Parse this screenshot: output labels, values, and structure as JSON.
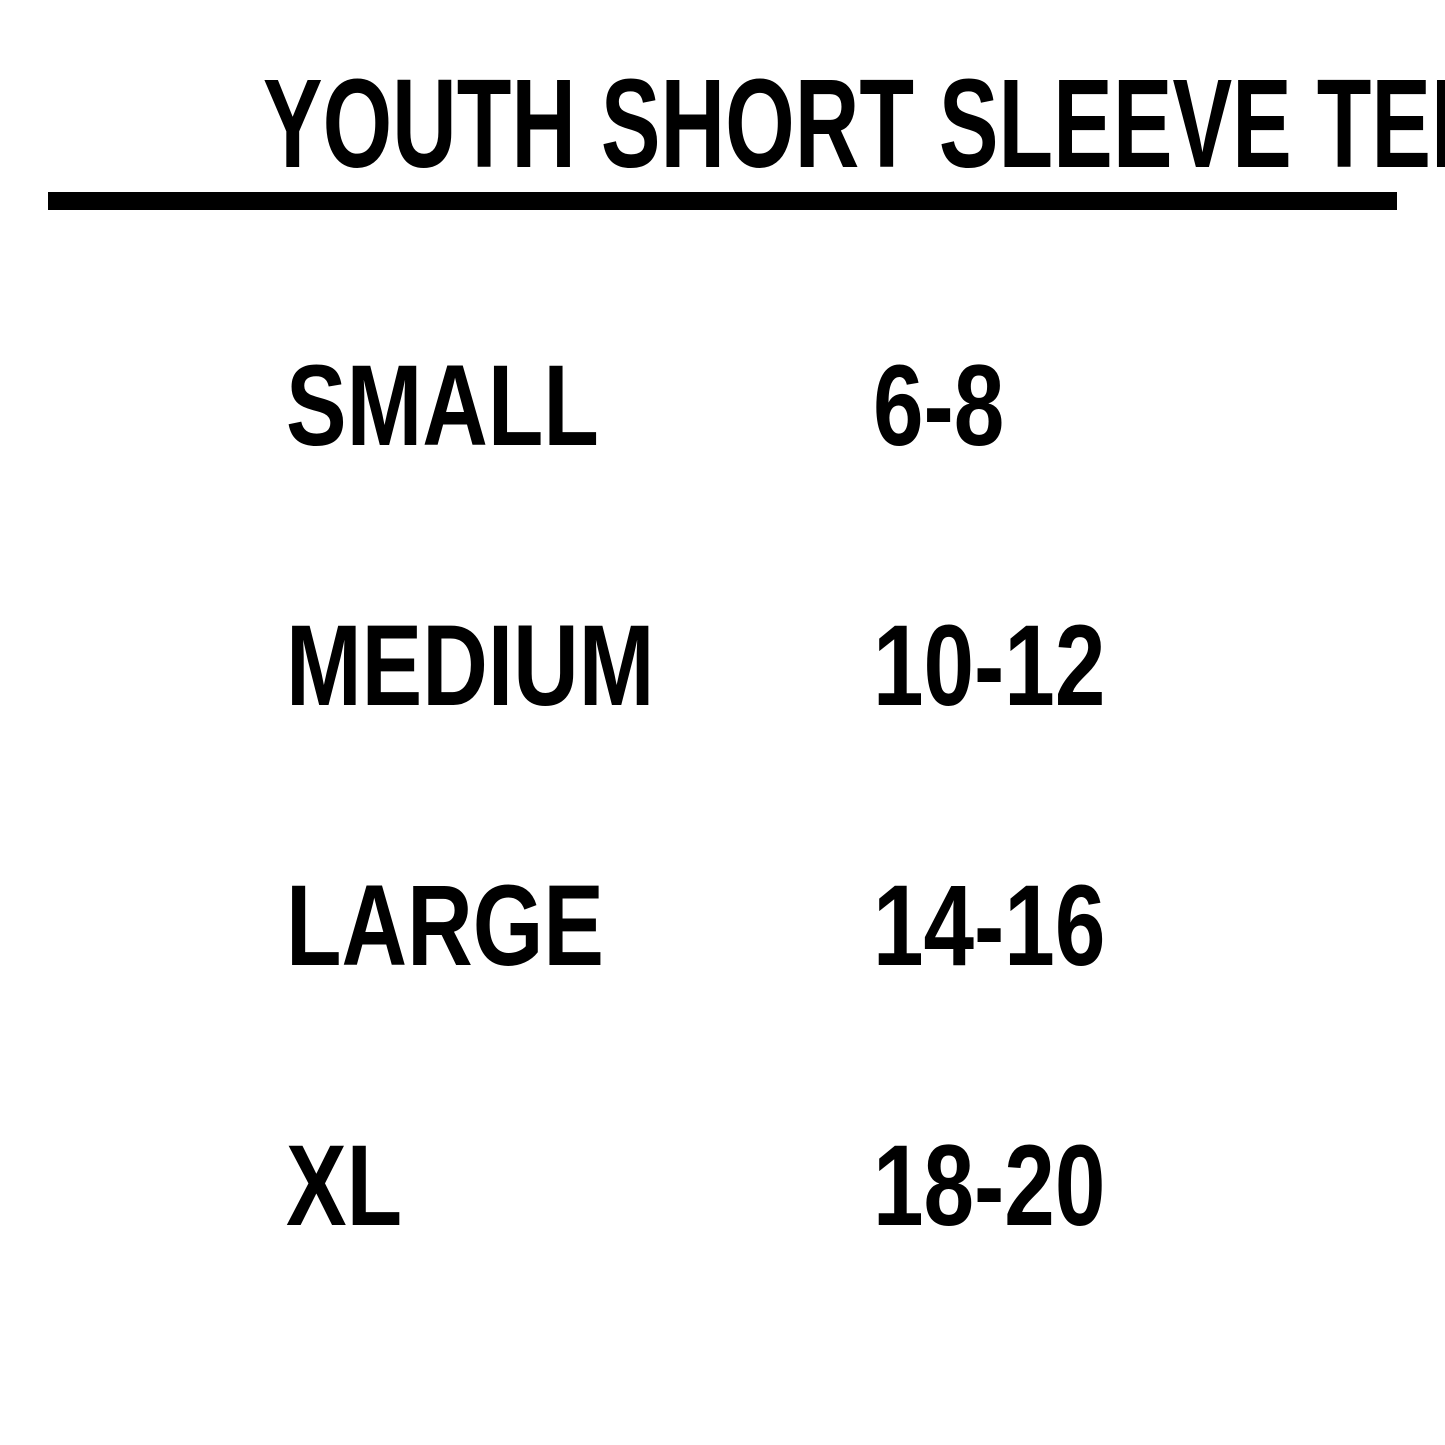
{
  "title": "YOUTH SHORT SLEEVE TEES",
  "size_table": {
    "rows": [
      {
        "size": "SMALL",
        "range": "6-8"
      },
      {
        "size": "MEDIUM",
        "range": "10-12"
      },
      {
        "size": "LARGE",
        "range": "14-16"
      },
      {
        "size": "XL",
        "range": "18-20"
      }
    ]
  },
  "chart_data": {
    "type": "table",
    "title": "YOUTH SHORT SLEEVE TEES",
    "rows": [
      [
        "SMALL",
        "6-8"
      ],
      [
        "MEDIUM",
        "10-12"
      ],
      [
        "LARGE",
        "14-16"
      ],
      [
        "XL",
        "18-20"
      ]
    ]
  },
  "colors": {
    "background": "#ffffff",
    "text": "#000000",
    "underline": "#000000"
  }
}
